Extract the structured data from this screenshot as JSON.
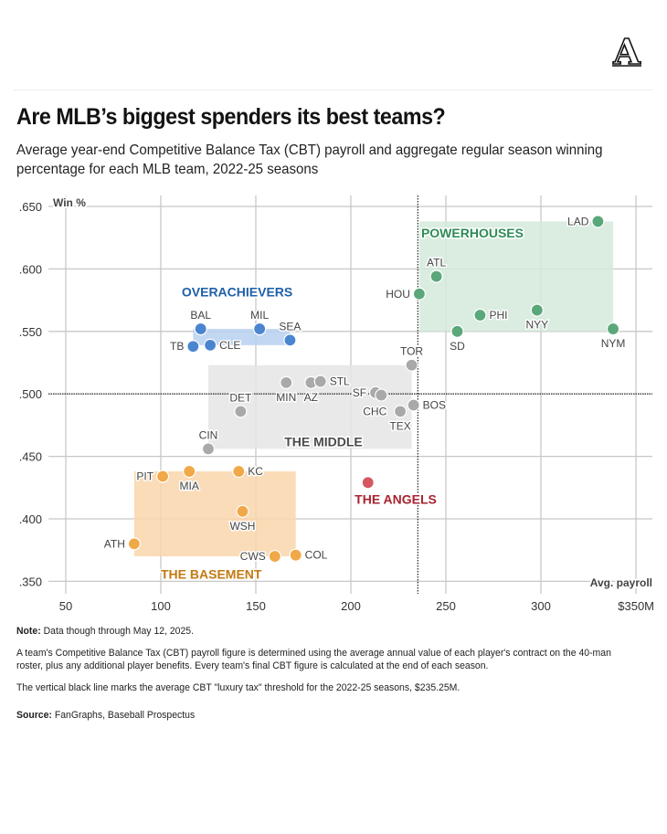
{
  "header": {
    "logo_letter": "A",
    "title": "Are MLB’s biggest spenders its best teams?",
    "subtitle": "Average year-end Competitive Balance Tax (CBT) payroll and aggregate regular season winning percentage for each MLB team, 2022-25 seasons"
  },
  "notes": {
    "note_label": "Note:",
    "note_text": " Data though through May 12, 2025.",
    "paragraph1": "A team's Competitive Balance Tax (CBT) payroll figure is determined using the average annual value of each player's contract on the 40-man roster, plus any additional player benefits. Every team's final CBT figure is calculated at the end of each season.",
    "paragraph2": "The vertical black line marks the average CBT \"luxury tax\" threshold for the 2022-25 seasons, $235.25M.",
    "source_label": "Source:",
    "source_text": " FanGraphs, Baseball Prospectus"
  },
  "chart_data": {
    "type": "scatter",
    "title": "Are MLB’s biggest spenders its best teams?",
    "xlabel": "Avg. payroll",
    "ylabel": "Win %",
    "xlim": [
      40,
      358
    ],
    "ylim": [
      0.345,
      0.655
    ],
    "xticks": [
      50,
      100,
      150,
      200,
      250,
      300,
      350
    ],
    "xtick_labels": [
      "50",
      "100",
      "150",
      "200",
      "250",
      "300",
      "$350M"
    ],
    "yticks": [
      0.65,
      0.6,
      0.55,
      0.5,
      0.45,
      0.4,
      0.35
    ],
    "ytick_labels": [
      ".650",
      ".600",
      ".550",
      ".500",
      ".450",
      ".400",
      ".350"
    ],
    "grid": true,
    "reference_lines": [
      {
        "axis": "x",
        "value": 235.25,
        "label": "CBT luxury tax threshold",
        "style": "dotted"
      },
      {
        "axis": "y",
        "value": 0.5,
        "style": "dotted"
      }
    ],
    "groups": [
      {
        "name": "POWERHOUSES",
        "color": "#2e8b57",
        "point_color": "#5aa77a",
        "box_color": "#d3eadb",
        "box": {
          "x": [
            236,
            338
          ],
          "y": [
            0.55,
            0.638
          ]
        },
        "label_pos": [
          237,
          0.625
        ]
      },
      {
        "name": "OVERACHIEVERS",
        "color": "#1f5fa8",
        "point_color": "#4a86cf",
        "box_color": "#b7d0f0",
        "box": {
          "x": [
            117,
            168
          ],
          "y": [
            0.539,
            0.552
          ]
        },
        "label_pos": [
          111,
          0.578
        ]
      },
      {
        "name": "THE MIDDLE",
        "color": "#4a4a4a",
        "point_color": "#a9a9a9",
        "box_color": "#e5e5e5",
        "box": {
          "x": [
            125,
            232
          ],
          "y": [
            0.456,
            0.523
          ]
        },
        "label_pos": [
          165,
          0.458
        ]
      },
      {
        "name": "THE BASEMENT",
        "color": "#c27a12",
        "point_color": "#f0a848",
        "box_color": "#f9d6ab",
        "box": {
          "x": [
            86,
            171
          ],
          "y": [
            0.37,
            0.438
          ]
        },
        "label_pos": [
          100,
          0.352
        ]
      },
      {
        "name": "THE ANGELS",
        "color": "#a8232f",
        "point_color": "#d6575f",
        "box_color": null,
        "box": null,
        "label_pos": [
          202,
          0.412
        ]
      }
    ],
    "points": [
      {
        "team": "LAD",
        "x": 330,
        "y": 0.638,
        "group": "POWERHOUSES",
        "label_side": "left"
      },
      {
        "team": "ATL",
        "x": 245,
        "y": 0.594,
        "group": "POWERHOUSES",
        "label_side": "top"
      },
      {
        "team": "HOU",
        "x": 236,
        "y": 0.58,
        "group": "POWERHOUSES",
        "label_side": "left"
      },
      {
        "team": "PHI",
        "x": 268,
        "y": 0.563,
        "group": "POWERHOUSES",
        "label_side": "right"
      },
      {
        "team": "NYY",
        "x": 298,
        "y": 0.567,
        "group": "POWERHOUSES",
        "label_side": "bottom"
      },
      {
        "team": "SD",
        "x": 256,
        "y": 0.55,
        "group": "POWERHOUSES",
        "label_side": "bottom"
      },
      {
        "team": "NYM",
        "x": 338,
        "y": 0.552,
        "group": "POWERHOUSES",
        "label_side": "bottom"
      },
      {
        "team": "BAL",
        "x": 121,
        "y": 0.552,
        "group": "OVERACHIEVERS",
        "label_side": "top"
      },
      {
        "team": "MIL",
        "x": 152,
        "y": 0.552,
        "group": "OVERACHIEVERS",
        "label_side": "top"
      },
      {
        "team": "SEA",
        "x": 168,
        "y": 0.543,
        "group": "OVERACHIEVERS",
        "label_side": "top"
      },
      {
        "team": "TB",
        "x": 117,
        "y": 0.538,
        "group": "OVERACHIEVERS",
        "label_side": "left"
      },
      {
        "team": "CLE",
        "x": 126,
        "y": 0.539,
        "group": "OVERACHIEVERS",
        "label_side": "right"
      },
      {
        "team": "TOR",
        "x": 232,
        "y": 0.523,
        "group": "THE MIDDLE",
        "label_side": "top"
      },
      {
        "team": "MIN",
        "x": 166,
        "y": 0.509,
        "group": "THE MIDDLE",
        "label_side": "bottom"
      },
      {
        "team": "AZ",
        "x": 179,
        "y": 0.509,
        "group": "THE MIDDLE",
        "label_side": "bottom"
      },
      {
        "team": "STL",
        "x": 184,
        "y": 0.51,
        "group": "THE MIDDLE",
        "label_side": "right"
      },
      {
        "team": "SF",
        "x": 213,
        "y": 0.501,
        "group": "THE MIDDLE",
        "label_side": "left"
      },
      {
        "team": "CHC",
        "x": 216,
        "y": 0.499,
        "group": "THE MIDDLE",
        "label_side": "bottom-left"
      },
      {
        "team": "DET",
        "x": 142,
        "y": 0.486,
        "group": "THE MIDDLE",
        "label_side": "top"
      },
      {
        "team": "TEX",
        "x": 226,
        "y": 0.486,
        "group": "THE MIDDLE",
        "label_side": "bottom"
      },
      {
        "team": "BOS",
        "x": 233,
        "y": 0.491,
        "group": "THE MIDDLE",
        "label_side": "right"
      },
      {
        "team": "CIN",
        "x": 125,
        "y": 0.456,
        "group": "THE MIDDLE",
        "label_side": "top"
      },
      {
        "team": "PIT",
        "x": 101,
        "y": 0.434,
        "group": "THE BASEMENT",
        "label_side": "left"
      },
      {
        "team": "MIA",
        "x": 115,
        "y": 0.438,
        "group": "THE BASEMENT",
        "label_side": "bottom"
      },
      {
        "team": "KC",
        "x": 141,
        "y": 0.438,
        "group": "THE BASEMENT",
        "label_side": "right"
      },
      {
        "team": "WSH",
        "x": 143,
        "y": 0.406,
        "group": "THE BASEMENT",
        "label_side": "bottom"
      },
      {
        "team": "ATH",
        "x": 86,
        "y": 0.38,
        "group": "THE BASEMENT",
        "label_side": "left"
      },
      {
        "team": "CWS",
        "x": 160,
        "y": 0.37,
        "group": "THE BASEMENT",
        "label_side": "left"
      },
      {
        "team": "COL",
        "x": 171,
        "y": 0.371,
        "group": "THE BASEMENT",
        "label_side": "right"
      },
      {
        "team": "LAA",
        "x": 209,
        "y": 0.429,
        "group": "THE ANGELS",
        "label_side": "none"
      }
    ]
  }
}
